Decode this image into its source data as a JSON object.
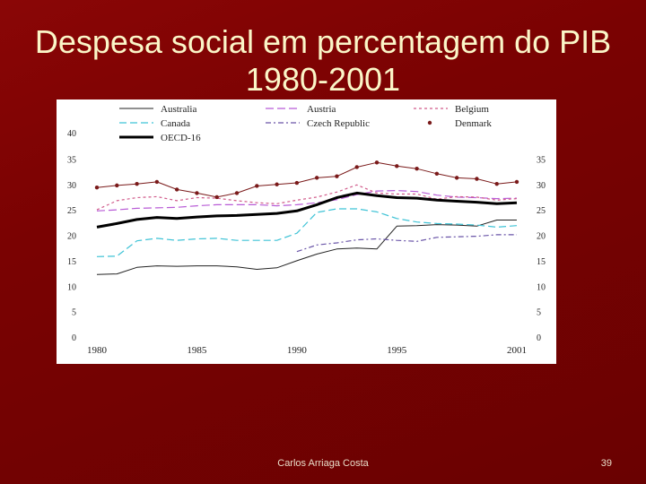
{
  "slide": {
    "title": "Despesa social em percentagem do PIB 1980-2001",
    "footer": "Carlos Arriaga Costa",
    "page_number": "39"
  },
  "chart_data": {
    "type": "line",
    "title": "",
    "xlabel": "",
    "ylabel": "",
    "xlim": [
      1980,
      2001
    ],
    "ylim": [
      0,
      40
    ],
    "x_ticks": [
      "1980",
      "1985",
      "1990",
      "1995",
      "2001"
    ],
    "y_ticks": [
      "0",
      "5",
      "10",
      "15",
      "20",
      "25",
      "30",
      "35",
      "40"
    ],
    "legend": [
      "Australia",
      "Austria",
      "Belgium",
      "Canada",
      "Czech Republic",
      "Denmark",
      "OECD-16"
    ],
    "grid": false,
    "colors": {
      "Australia": "#222222",
      "Austria": "#b85bd6",
      "Belgium": "#d05a8a",
      "Canada": "#3fc3d6",
      "Czech Republic": "#6a55a8",
      "Denmark": "#7a1a1a",
      "OECD-16": "#000000"
    },
    "series": [
      {
        "name": "Australia",
        "x": [
          1980,
          1981,
          1982,
          1983,
          1984,
          1985,
          1986,
          1987,
          1988,
          1989,
          1990,
          1991,
          1992,
          1993,
          1994,
          1995,
          1996,
          1997,
          1998,
          1999,
          2000,
          2001
        ],
        "values": [
          12.3,
          12.4,
          13.7,
          14.0,
          13.9,
          14.0,
          14.0,
          13.8,
          13.3,
          13.6,
          15.0,
          16.3,
          17.3,
          17.5,
          17.3,
          21.8,
          21.9,
          22.1,
          22.0,
          21.8,
          23.0,
          23.0
        ]
      },
      {
        "name": "Austria",
        "x": [
          1980,
          1981,
          1982,
          1983,
          1984,
          1985,
          1986,
          1987,
          1988,
          1989,
          1990,
          1991,
          1992,
          1993,
          1994,
          1995,
          1996,
          1997,
          1998,
          1999,
          2000,
          2001
        ],
        "values": [
          24.8,
          25.0,
          25.3,
          25.4,
          25.5,
          25.8,
          26.0,
          26.0,
          26.0,
          25.8,
          26.0,
          26.4,
          27.0,
          28.0,
          28.7,
          28.8,
          28.6,
          27.9,
          27.5,
          27.4,
          27.2,
          27.3
        ]
      },
      {
        "name": "Belgium",
        "x": [
          1980,
          1981,
          1982,
          1983,
          1984,
          1985,
          1986,
          1987,
          1988,
          1989,
          1990,
          1991,
          1992,
          1993,
          1994,
          1995,
          1996,
          1997,
          1998,
          1999,
          2000,
          2001
        ],
        "values": [
          25.0,
          26.8,
          27.4,
          27.6,
          26.8,
          27.4,
          27.3,
          26.8,
          26.4,
          26.2,
          26.9,
          27.5,
          28.5,
          29.9,
          28.3,
          28.1,
          28.1,
          27.1,
          27.6,
          27.5,
          26.9,
          27.2
        ]
      },
      {
        "name": "Canada",
        "x": [
          1980,
          1981,
          1982,
          1983,
          1984,
          1985,
          1986,
          1987,
          1988,
          1989,
          1990,
          1991,
          1992,
          1993,
          1994,
          1995,
          1996,
          1997,
          1998,
          1999,
          2000,
          2001
        ],
        "values": [
          15.8,
          15.9,
          18.9,
          19.4,
          19.0,
          19.3,
          19.4,
          19.0,
          19.0,
          19.0,
          20.4,
          24.5,
          25.2,
          25.2,
          24.6,
          23.3,
          22.6,
          22.3,
          22.2,
          22.0,
          21.6,
          21.9
        ]
      },
      {
        "name": "Czech Republic",
        "x": [
          1990,
          1991,
          1992,
          1993,
          1994,
          1995,
          1996,
          1997,
          1998,
          1999,
          2000,
          2001
        ],
        "values": [
          16.8,
          18.1,
          18.5,
          19.1,
          19.3,
          19.0,
          18.8,
          19.6,
          19.7,
          19.8,
          20.1,
          20.1
        ]
      },
      {
        "name": "Denmark",
        "x": [
          1980,
          1981,
          1982,
          1983,
          1984,
          1985,
          1986,
          1987,
          1988,
          1989,
          1990,
          1991,
          1992,
          1993,
          1994,
          1995,
          1996,
          1997,
          1998,
          1999,
          2000,
          2001
        ],
        "values": [
          29.4,
          29.8,
          30.1,
          30.5,
          29.0,
          28.3,
          27.5,
          28.3,
          29.7,
          30.0,
          30.3,
          31.3,
          31.6,
          33.4,
          34.3,
          33.6,
          33.1,
          32.1,
          31.3,
          31.1,
          30.1,
          30.5
        ]
      },
      {
        "name": "OECD-16",
        "x": [
          1980,
          1981,
          1982,
          1983,
          1984,
          1985,
          1986,
          1987,
          1988,
          1989,
          1990,
          1991,
          1992,
          1993,
          1994,
          1995,
          1996,
          1997,
          1998,
          1999,
          2000,
          2001
        ],
        "values": [
          21.6,
          22.3,
          23.1,
          23.5,
          23.3,
          23.6,
          23.8,
          23.9,
          24.1,
          24.3,
          24.8,
          26.0,
          27.4,
          28.3,
          27.8,
          27.4,
          27.3,
          26.9,
          26.7,
          26.5,
          26.2,
          26.4
        ]
      }
    ]
  }
}
